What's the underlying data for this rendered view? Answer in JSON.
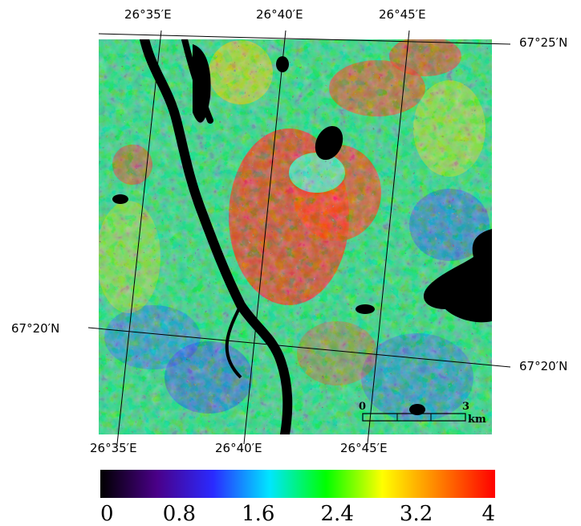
{
  "map": {
    "top_lon_labels": [
      "26°35′E",
      "26°40′E",
      "26°45′E"
    ],
    "bottom_lon_labels": [
      "26°35′E",
      "26°40′E",
      "26°45′E"
    ],
    "lat_labels": {
      "top_right": "67°25′N",
      "left": "67°20′N",
      "right": "67°20′N"
    },
    "scale_bar": {
      "start": "0",
      "end": "3",
      "unit": "km"
    }
  },
  "colorbar": {
    "min": 0,
    "max": 4,
    "tick_labels": [
      "0",
      "0.8",
      "1.6",
      "2.4",
      "3.2",
      "4"
    ],
    "colors": [
      "#000000",
      "#4a0088",
      "#2a2aff",
      "#00e6ff",
      "#00ff00",
      "#ffff00",
      "#ff8000",
      "#ff0000"
    ]
  }
}
